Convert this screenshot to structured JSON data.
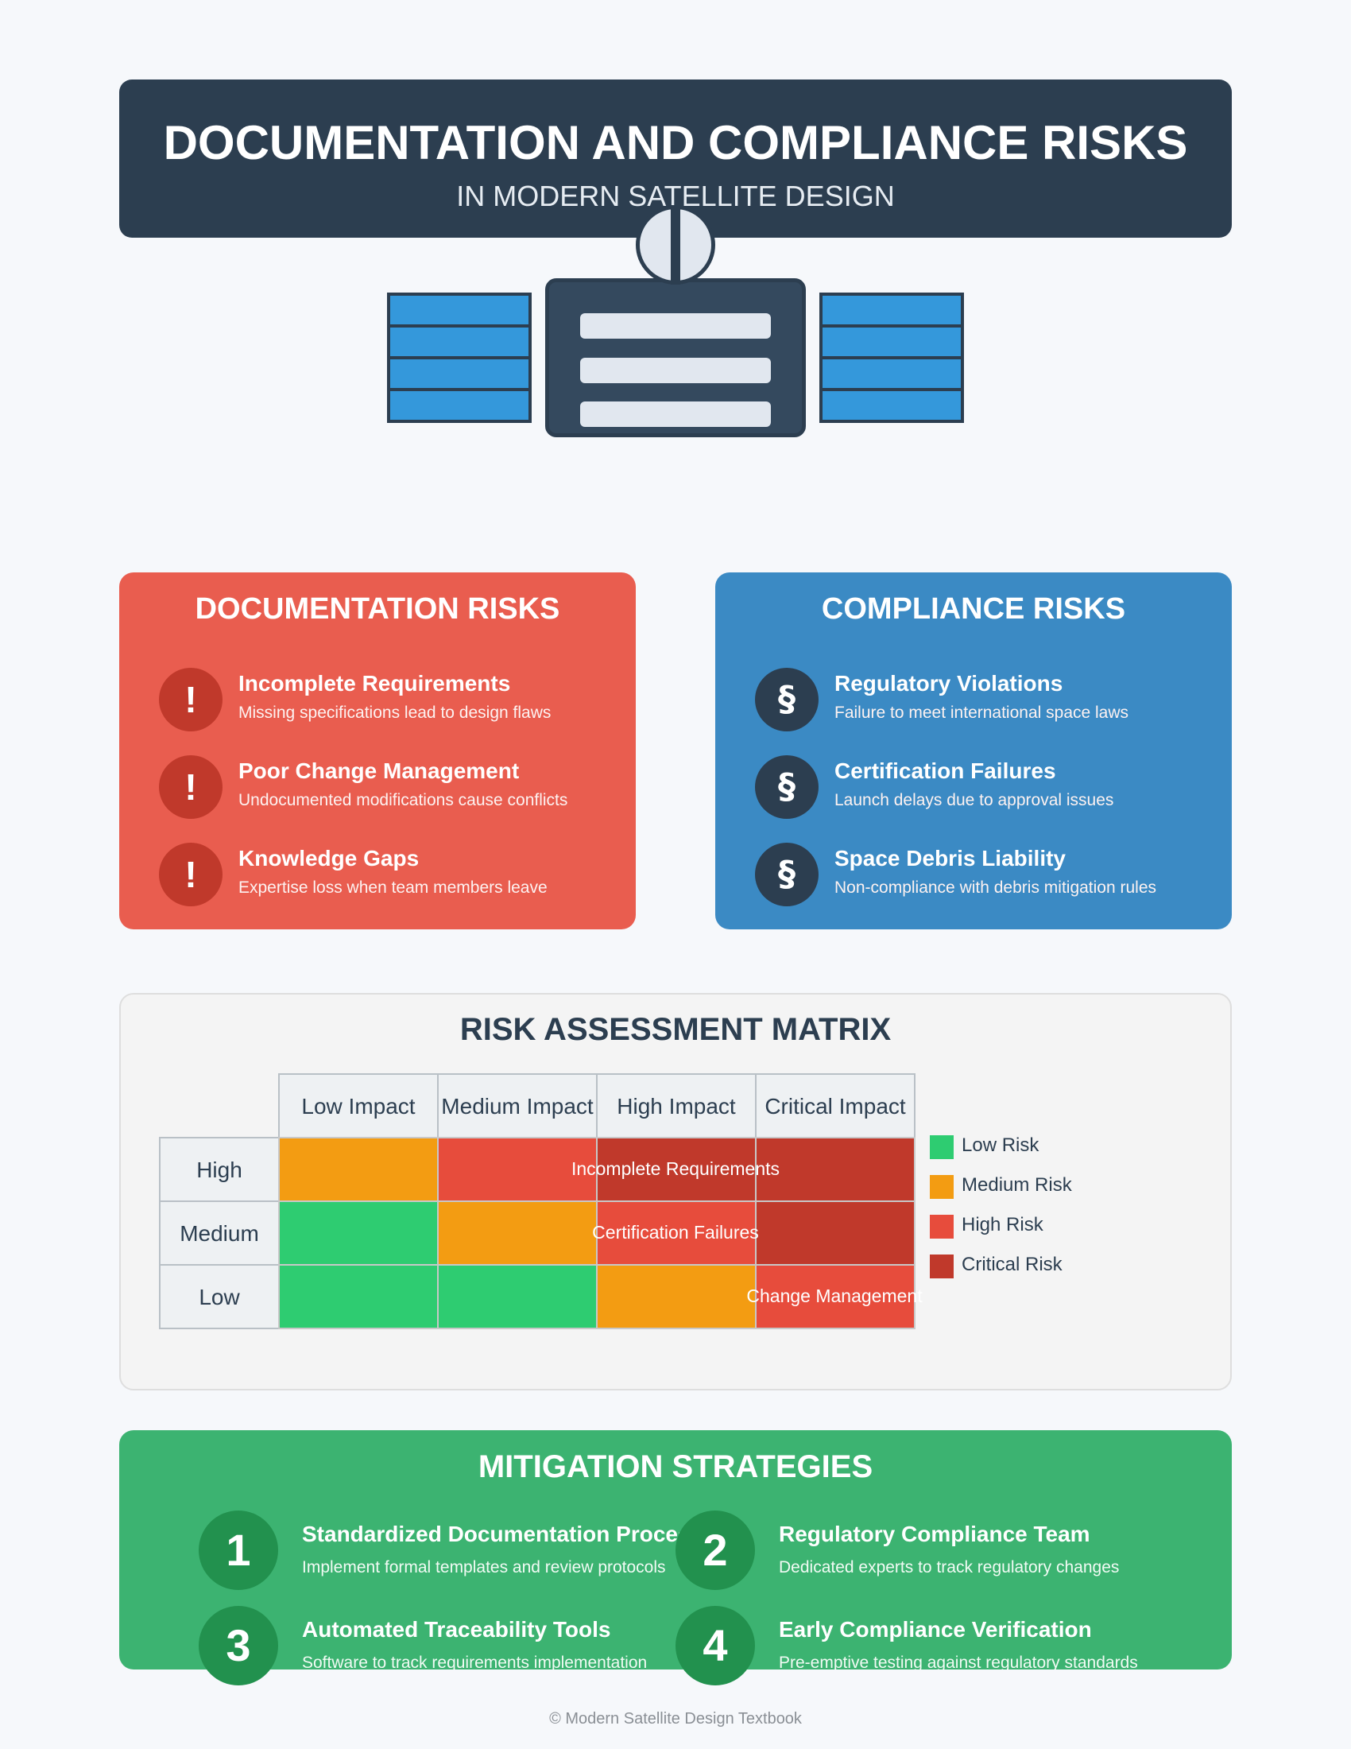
{
  "header": {
    "title": "DOCUMENTATION AND COMPLIANCE RISKS",
    "subtitle": "IN MODERN SATELLITE DESIGN"
  },
  "documentation": {
    "title": "DOCUMENTATION RISKS",
    "icon": "!",
    "items": [
      {
        "title": "Incomplete Requirements",
        "desc": "Missing specifications lead to design flaws"
      },
      {
        "title": "Poor Change Management",
        "desc": "Undocumented modifications cause conflicts"
      },
      {
        "title": "Knowledge Gaps",
        "desc": "Expertise loss when team members leave"
      }
    ]
  },
  "compliance": {
    "title": "COMPLIANCE RISKS",
    "icon": "§",
    "items": [
      {
        "title": "Regulatory Violations",
        "desc": "Failure to meet international space laws"
      },
      {
        "title": "Certification Failures",
        "desc": "Launch delays due to approval issues"
      },
      {
        "title": "Space Debris Liability",
        "desc": "Non-compliance with debris mitigation rules"
      }
    ]
  },
  "matrix": {
    "title": "RISK ASSESSMENT MATRIX",
    "columns": [
      "Low Impact",
      "Medium Impact",
      "High Impact",
      "Critical Impact"
    ],
    "rows": [
      "High",
      "Medium",
      "Low"
    ],
    "cells": [
      [
        "medium",
        "high",
        "critical",
        "critical"
      ],
      [
        "low",
        "medium",
        "high",
        "critical"
      ],
      [
        "low",
        "low",
        "medium",
        "high"
      ]
    ],
    "placed_risks": [
      {
        "label": "Incomplete Requirements",
        "row": "High",
        "column": "High Impact"
      },
      {
        "label": "Certification Failures",
        "row": "Medium",
        "column": "High Impact"
      },
      {
        "label": "Change Management",
        "row": "Low",
        "column": "Critical Impact"
      }
    ],
    "legend": [
      {
        "label": "Low Risk",
        "color": "#2ecc71"
      },
      {
        "label": "Medium Risk",
        "color": "#f39c12"
      },
      {
        "label": "High Risk",
        "color": "#e74c3c"
      },
      {
        "label": "Critical Risk",
        "color": "#c0392b"
      }
    ]
  },
  "mitigation": {
    "title": "MITIGATION STRATEGIES",
    "items": [
      {
        "num": "1",
        "title": "Standardized Documentation Process",
        "desc": "Implement formal templates and review protocols"
      },
      {
        "num": "2",
        "title": "Regulatory Compliance Team",
        "desc": "Dedicated experts to track regulatory changes"
      },
      {
        "num": "3",
        "title": "Automated Traceability Tools",
        "desc": "Software to track requirements implementation"
      },
      {
        "num": "4",
        "title": "Early Compliance Verification",
        "desc": "Pre-emptive testing against regulatory standards"
      }
    ]
  },
  "footer": "© Modern Satellite Design Textbook",
  "colors": {
    "header": "#2c3e50",
    "documentation": "#e95d4f",
    "compliance": "#3b8ac4",
    "mitigation": "#3cb371"
  }
}
